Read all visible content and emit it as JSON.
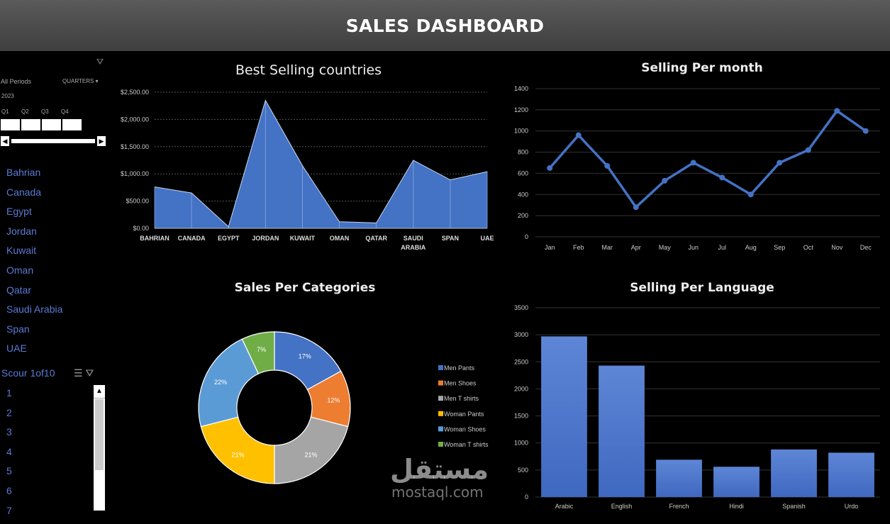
{
  "header": {
    "title": "SALES DASHBOARD"
  },
  "timeline": {
    "period_label": "All Periods",
    "level_label": "QUARTERS",
    "year": "2023",
    "quarters": [
      "Q1",
      "Q2",
      "Q3",
      "Q4"
    ]
  },
  "country_slicer": {
    "items": [
      "Bahrian",
      "Canada",
      "Egypt",
      "Jordan",
      "Kuwait",
      "Oman",
      "Qatar",
      "Saudi Arabia",
      "Span",
      "UAE"
    ]
  },
  "score_slicer": {
    "title": "Scour 1of10",
    "items": [
      "1",
      "2",
      "3",
      "4",
      "5",
      "6",
      "7"
    ]
  },
  "watermark": {
    "arabic": "مستقل",
    "latin": "mostaql.com"
  },
  "chart_data": [
    {
      "type": "area",
      "title": "Best Selling countries",
      "categories": [
        "BAHRIAN",
        "CANADA",
        "EGYPT",
        "JORDAN",
        "KUWAIT",
        "OMAN",
        "QATAR",
        "SAUDI ARABIA",
        "SPAN",
        "UAE"
      ],
      "values": [
        760,
        650,
        30,
        2350,
        1150,
        120,
        100,
        1250,
        890,
        1040
      ],
      "yticks": [
        "$0.00",
        "$500.00",
        "$1,000.00",
        "$1,500.00",
        "$2,000.00",
        "$2,500.00"
      ],
      "ylim": [
        0,
        2500
      ],
      "color": "#4472c4"
    },
    {
      "type": "line",
      "title": "Selling Per month",
      "categories": [
        "Jan",
        "Feb",
        "Mar",
        "Apr",
        "May",
        "Jun",
        "Jul",
        "Aug",
        "Sep",
        "Oct",
        "Nov",
        "Dec"
      ],
      "values": [
        650,
        960,
        670,
        280,
        530,
        700,
        560,
        400,
        700,
        820,
        1190,
        1000
      ],
      "yticks": [
        "0",
        "200",
        "400",
        "600",
        "800",
        "1000",
        "1200",
        "1400"
      ],
      "ylim": [
        0,
        1400
      ],
      "color": "#4472c4"
    },
    {
      "type": "pie",
      "title": "Sales Per Categories",
      "labels": [
        "Men Pants",
        "Men Shoes",
        "Men T shirts",
        "Woman Pants",
        "Woman Shoes",
        "Woman T shirts"
      ],
      "values": [
        17,
        12,
        21,
        21,
        22,
        7
      ],
      "value_labels": [
        "17%",
        "12%",
        "21%",
        "21%",
        "22%",
        "7%"
      ],
      "colors": [
        "#4472c4",
        "#ed7d31",
        "#a5a5a5",
        "#ffc000",
        "#5b9bd5",
        "#70ad47"
      ]
    },
    {
      "type": "bar",
      "title": "Selling Per Language",
      "categories": [
        "Arabic",
        "English",
        "French",
        "Hindi",
        "Spanish",
        "Urdo"
      ],
      "values": [
        2970,
        2430,
        690,
        560,
        880,
        820
      ],
      "yticks": [
        "0",
        "500",
        "1000",
        "1500",
        "2000",
        "2500",
        "3000",
        "3500"
      ],
      "ylim": [
        0,
        3500
      ],
      "color": "#4472c4"
    }
  ]
}
